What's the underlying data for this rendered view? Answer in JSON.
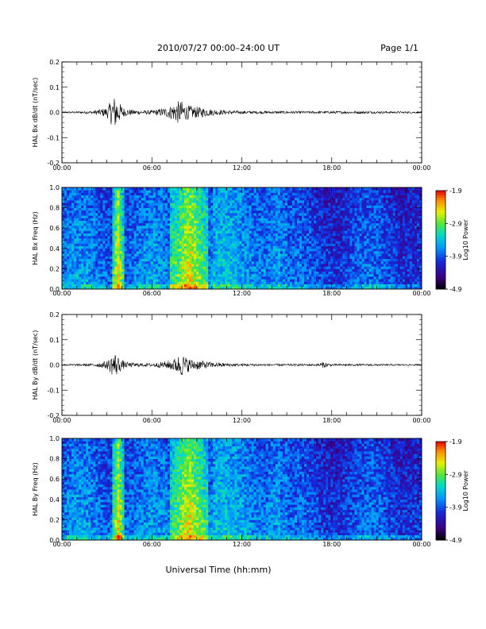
{
  "header": {
    "title": "2010/07/27  00:00–24:00 UT",
    "page": "Page 1/1"
  },
  "xlabel": "Universal Time (hh:mm)",
  "x_tick_labels": [
    "00:00",
    "06:00",
    "12:00",
    "18:00",
    "00:00"
  ],
  "chart_data": [
    {
      "type": "line",
      "ylabel": "HAL Bx dB/dt (nT/sec)",
      "xlim_hours": [
        0,
        24
      ],
      "ylim": [
        -0.2,
        0.2
      ],
      "yticks": [
        "0.2",
        "0.1",
        "0.0",
        "-0.1",
        "-0.2"
      ],
      "series": [
        {
          "x_hours": [
            0,
            2,
            3,
            3.4,
            3.6,
            3.8,
            4.2,
            5,
            6,
            7,
            7.5,
            7.7,
            8.0,
            8.3,
            8.7,
            9.3,
            10,
            11,
            12,
            14,
            16,
            18,
            20,
            22,
            24
          ],
          "amplitude": [
            0.003,
            0.005,
            0.02,
            0.06,
            0.07,
            0.04,
            0.015,
            0.008,
            0.008,
            0.02,
            0.035,
            0.045,
            0.045,
            0.03,
            0.025,
            0.02,
            0.012,
            0.008,
            0.006,
            0.005,
            0.005,
            0.005,
            0.005,
            0.004,
            0.003
          ]
        }
      ]
    },
    {
      "type": "heatmap",
      "ylabel": "HAL Bx Freq (Hz)",
      "xlim_hours": [
        0,
        24
      ],
      "ylim": [
        0.0,
        1.0
      ],
      "yticks": [
        "1.0",
        "0.8",
        "0.6",
        "0.4",
        "0.2",
        "0.0"
      ],
      "colorbar_label": "Log10 Power",
      "colorbar_ticks": [
        "-1.9",
        "-2.9",
        "-3.9",
        "-4.9"
      ],
      "clim": [
        -4.9,
        -1.9
      ],
      "activity_hours": [
        [
          3.3,
          4.2
        ],
        [
          7.2,
          9.8
        ]
      ]
    },
    {
      "type": "line",
      "ylabel": "HAL By dB/dt (nT/sec)",
      "xlim_hours": [
        0,
        24
      ],
      "ylim": [
        -0.2,
        0.2
      ],
      "yticks": [
        "0.2",
        "0.1",
        "0.0",
        "-0.1",
        "-0.2"
      ],
      "series": [
        {
          "x_hours": [
            0,
            2,
            3,
            3.4,
            3.6,
            3.8,
            4.2,
            5,
            6,
            7,
            7.5,
            7.8,
            8.0,
            8.3,
            8.7,
            9.3,
            10,
            11,
            12,
            14,
            16,
            17,
            17.4,
            18,
            20,
            22,
            24
          ],
          "amplitude": [
            0.003,
            0.005,
            0.015,
            0.045,
            0.05,
            0.03,
            0.012,
            0.007,
            0.007,
            0.015,
            0.025,
            0.04,
            0.045,
            0.03,
            0.022,
            0.018,
            0.01,
            0.007,
            0.005,
            0.004,
            0.004,
            0.004,
            0.012,
            0.004,
            0.004,
            0.003,
            0.003
          ]
        }
      ]
    },
    {
      "type": "heatmap",
      "ylabel": "HAL By Freq (Hz)",
      "xlim_hours": [
        0,
        24
      ],
      "ylim": [
        0.0,
        1.0
      ],
      "yticks": [
        "1.0",
        "0.8",
        "0.6",
        "0.4",
        "0.2",
        "0.0"
      ],
      "colorbar_label": "Log10 Power",
      "colorbar_ticks": [
        "-1.9",
        "-2.9",
        "-3.9",
        "-4.9"
      ],
      "clim": [
        -4.9,
        -1.9
      ],
      "activity_hours": [
        [
          3.3,
          4.2
        ],
        [
          7.2,
          9.8
        ]
      ]
    }
  ]
}
